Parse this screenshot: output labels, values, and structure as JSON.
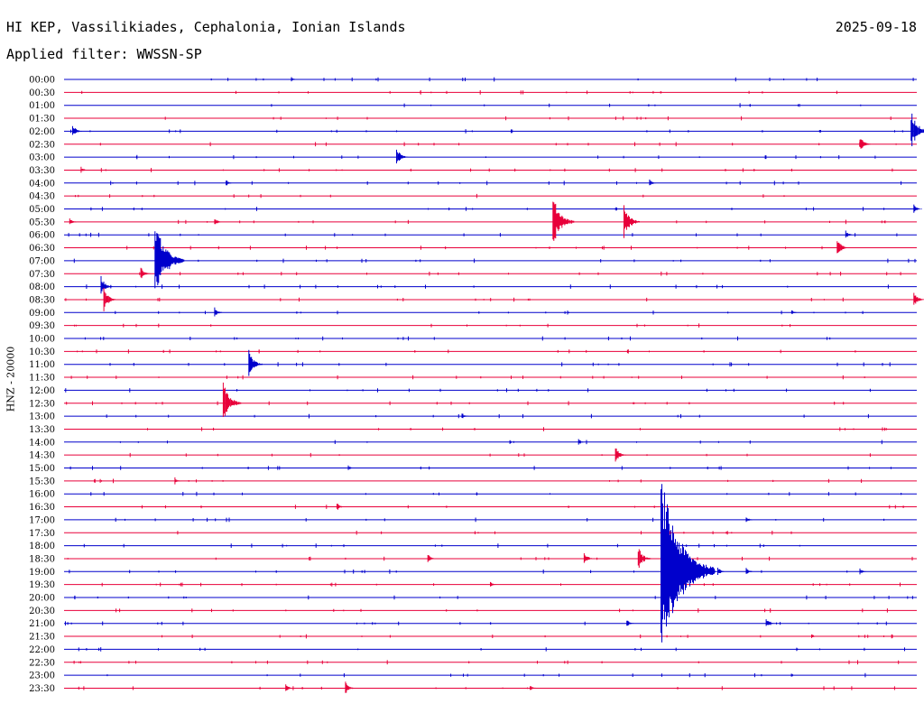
{
  "header": {
    "station": "HI KEP, Vassilikiades, Cephalonia, Ionian Islands",
    "date": "2025-09-18",
    "filter": "Applied filter: WWSSN-SP"
  },
  "colors": {
    "even_trace": "#0000cc",
    "odd_trace": "#e8003a",
    "text": "#000000"
  },
  "chart_data": {
    "type": "line",
    "title": "HI KEP, Vassilikiades, Cephalonia, Ionian Islands",
    "ylabel": "HNZ - 20000",
    "rows": [
      "00:00",
      "00:30",
      "01:00",
      "01:30",
      "02:00",
      "02:30",
      "03:00",
      "03:30",
      "04:00",
      "04:30",
      "05:00",
      "05:30",
      "06:00",
      "06:30",
      "07:00",
      "07:30",
      "08:00",
      "08:30",
      "09:00",
      "09:30",
      "10:00",
      "10:30",
      "11:00",
      "11:30",
      "12:00",
      "12:30",
      "13:00",
      "13:30",
      "14:00",
      "14:30",
      "15:00",
      "15:30",
      "16:00",
      "16:30",
      "17:00",
      "17:30",
      "18:00",
      "18:30",
      "19:00",
      "19:30",
      "20:00",
      "20:30",
      "21:00",
      "21:30",
      "22:00",
      "22:30",
      "23:00",
      "23:30"
    ],
    "trace_minutes": 30,
    "events": [
      {
        "row": 0,
        "minute": 8.0,
        "amp": 3
      },
      {
        "row": 4,
        "minute": 0.3,
        "amp": 8
      },
      {
        "row": 4,
        "minute": 29.8,
        "amp": 24
      },
      {
        "row": 5,
        "minute": 28.0,
        "amp": 10
      },
      {
        "row": 6,
        "minute": 11.7,
        "amp": 12
      },
      {
        "row": 7,
        "minute": 0.6,
        "amp": 4
      },
      {
        "row": 8,
        "minute": 5.7,
        "amp": 4
      },
      {
        "row": 8,
        "minute": 20.6,
        "amp": 4
      },
      {
        "row": 10,
        "minute": 29.9,
        "amp": 6
      },
      {
        "row": 11,
        "minute": 0.2,
        "amp": 5
      },
      {
        "row": 11,
        "minute": 5.3,
        "amp": 5
      },
      {
        "row": 11,
        "minute": 17.2,
        "amp": 30
      },
      {
        "row": 11,
        "minute": 19.7,
        "amp": 20
      },
      {
        "row": 12,
        "minute": 27.5,
        "amp": 5
      },
      {
        "row": 13,
        "minute": 27.2,
        "amp": 12
      },
      {
        "row": 14,
        "minute": 3.2,
        "amp": 45
      },
      {
        "row": 15,
        "minute": 2.7,
        "amp": 8
      },
      {
        "row": 16,
        "minute": 1.3,
        "amp": 12
      },
      {
        "row": 17,
        "minute": 1.4,
        "amp": 14
      },
      {
        "row": 17,
        "minute": 29.9,
        "amp": 10
      },
      {
        "row": 18,
        "minute": 5.3,
        "amp": 6
      },
      {
        "row": 18,
        "minute": 25.6,
        "amp": 3
      },
      {
        "row": 22,
        "minute": 6.5,
        "amp": 16
      },
      {
        "row": 25,
        "minute": 5.6,
        "amp": 24
      },
      {
        "row": 26,
        "minute": 14.0,
        "amp": 4
      },
      {
        "row": 28,
        "minute": 18.1,
        "amp": 4
      },
      {
        "row": 29,
        "minute": 19.4,
        "amp": 10
      },
      {
        "row": 30,
        "minute": 10.0,
        "amp": 3
      },
      {
        "row": 31,
        "minute": 3.9,
        "amp": 4
      },
      {
        "row": 33,
        "minute": 9.6,
        "amp": 5
      },
      {
        "row": 34,
        "minute": 24.0,
        "amp": 4
      },
      {
        "row": 36,
        "minute": 21.0,
        "amp": 4
      },
      {
        "row": 37,
        "minute": 12.8,
        "amp": 6
      },
      {
        "row": 37,
        "minute": 18.3,
        "amp": 8
      },
      {
        "row": 37,
        "minute": 20.2,
        "amp": 14
      },
      {
        "row": 38,
        "minute": 21.0,
        "amp": 110
      },
      {
        "row": 38,
        "minute": 23.0,
        "amp": 6
      },
      {
        "row": 38,
        "minute": 24.0,
        "amp": 5
      },
      {
        "row": 38,
        "minute": 28.0,
        "amp": 4
      },
      {
        "row": 39,
        "minute": 15.0,
        "amp": 4
      },
      {
        "row": 42,
        "minute": 19.8,
        "amp": 5
      },
      {
        "row": 42,
        "minute": 24.7,
        "amp": 6
      },
      {
        "row": 43,
        "minute": 26.3,
        "amp": 3
      },
      {
        "row": 47,
        "minute": 7.8,
        "amp": 5
      },
      {
        "row": 47,
        "minute": 9.9,
        "amp": 8
      },
      {
        "row": 47,
        "minute": 16.4,
        "amp": 4
      }
    ]
  }
}
